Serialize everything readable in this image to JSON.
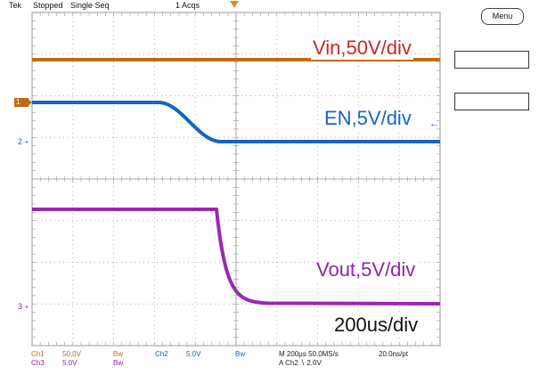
{
  "status": {
    "brand": "Tek",
    "acq_state": "Stopped",
    "mode": "Single Seq",
    "acq_count": "1 Acqs"
  },
  "menu_button": "Menu",
  "channels": {
    "vin": {
      "label": "Vin,50V/div",
      "color": "#b45309",
      "marker": "1"
    },
    "en": {
      "label": "EN,5V/div",
      "color": "#1565c0",
      "marker": "2"
    },
    "vout": {
      "label": "Vout,5V/div",
      "color": "#8e24aa",
      "marker": "3"
    }
  },
  "timebase_label": "200us/div",
  "footer": {
    "ch1": "Ch1",
    "ch1_scale": "50.0V",
    "ch1_bw": "Bw",
    "ch2": "Ch2",
    "ch2_scale": "5.0V",
    "ch2_bw": "Bw",
    "ch3": "Ch3",
    "ch3_scale": "5.0V",
    "ch3_bw": "Bw",
    "horiz": "M 200µs 50.0MS/s",
    "per_pt": "20.0ns/pt",
    "trigger": "A Ch2 ∖ 2.0V"
  },
  "colors": {
    "ch1": "#c26a11",
    "ch2": "#1565c0",
    "ch3": "#9c27b0",
    "grid": "#9a9a9a"
  }
}
